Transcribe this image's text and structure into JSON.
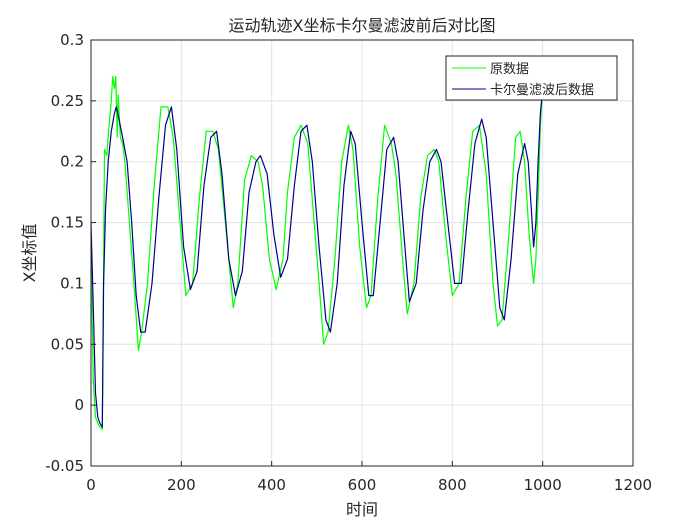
{
  "chart_data": {
    "type": "line",
    "title": "运动轨迹X坐标卡尔曼滤波前后对比图",
    "xlabel": "时间",
    "ylabel": "X坐标值",
    "xlim": [
      0,
      1200
    ],
    "ylim": [
      -0.05,
      0.3
    ],
    "xticks": [
      "0",
      "200",
      "400",
      "600",
      "800",
      "1000",
      "1200"
    ],
    "yticks": [
      "-0.05",
      "0",
      "0.05",
      "0.1",
      "0.15",
      "0.2",
      "0.25",
      "0.3"
    ],
    "grid": true,
    "legend_position": "top-right",
    "series": [
      {
        "name": "原数据",
        "color": "#00ff00",
        "x": [
          0,
          5,
          10,
          15,
          20,
          25,
          30,
          35,
          40,
          45,
          48,
          52,
          55,
          58,
          60,
          65,
          70,
          75,
          85,
          95,
          105,
          112,
          125,
          140,
          155,
          170,
          182,
          195,
          210,
          225,
          240,
          255,
          270,
          282,
          300,
          315,
          325,
          340,
          355,
          370,
          380,
          395,
          410,
          425,
          435,
          450,
          465,
          480,
          492,
          505,
          515,
          525,
          540,
          555,
          570,
          580,
          595,
          610,
          620,
          635,
          650,
          665,
          675,
          690,
          700,
          715,
          730,
          745,
          760,
          770,
          785,
          800,
          815,
          830,
          845,
          860,
          875,
          890,
          900,
          910,
          925,
          940,
          950,
          960,
          970,
          980,
          985,
          990,
          995,
          1000,
          1005
        ],
        "values": [
          0.13,
          0.02,
          -0.01,
          -0.015,
          -0.018,
          -0.02,
          0.21,
          0.205,
          0.23,
          0.25,
          0.27,
          0.26,
          0.27,
          0.22,
          0.255,
          0.22,
          0.215,
          0.2,
          0.15,
          0.1,
          0.045,
          0.06,
          0.1,
          0.18,
          0.245,
          0.245,
          0.22,
          0.16,
          0.09,
          0.1,
          0.17,
          0.225,
          0.225,
          0.21,
          0.14,
          0.08,
          0.1,
          0.185,
          0.205,
          0.2,
          0.18,
          0.12,
          0.095,
          0.12,
          0.175,
          0.22,
          0.23,
          0.215,
          0.16,
          0.1,
          0.05,
          0.06,
          0.12,
          0.2,
          0.23,
          0.21,
          0.13,
          0.08,
          0.09,
          0.17,
          0.23,
          0.215,
          0.19,
          0.12,
          0.075,
          0.1,
          0.17,
          0.205,
          0.21,
          0.2,
          0.14,
          0.09,
          0.1,
          0.17,
          0.225,
          0.23,
          0.19,
          0.1,
          0.065,
          0.07,
          0.14,
          0.22,
          0.225,
          0.2,
          0.14,
          0.1,
          0.12,
          0.17,
          0.23,
          0.26,
          0.28
        ]
      },
      {
        "name": "卡尔曼滤波后数据",
        "color": "#00008b",
        "x": [
          0,
          5,
          10,
          15,
          20,
          25,
          28,
          32,
          38,
          45,
          52,
          56,
          62,
          70,
          80,
          90,
          100,
          110,
          120,
          135,
          150,
          165,
          178,
          190,
          205,
          220,
          235,
          250,
          265,
          278,
          290,
          305,
          320,
          335,
          350,
          365,
          375,
          390,
          405,
          420,
          435,
          450,
          465,
          478,
          490,
          505,
          520,
          530,
          545,
          560,
          575,
          585,
          600,
          615,
          625,
          640,
          655,
          670,
          680,
          695,
          705,
          720,
          735,
          750,
          765,
          775,
          790,
          805,
          820,
          835,
          850,
          865,
          875,
          890,
          905,
          915,
          930,
          945,
          960,
          968,
          975,
          980,
          985,
          990,
          995,
          1000,
          1005
        ],
        "values": [
          0.15,
          0.08,
          0.01,
          -0.01,
          -0.015,
          -0.018,
          0.1,
          0.16,
          0.2,
          0.225,
          0.24,
          0.245,
          0.235,
          0.22,
          0.2,
          0.15,
          0.09,
          0.06,
          0.06,
          0.1,
          0.17,
          0.23,
          0.245,
          0.21,
          0.13,
          0.095,
          0.11,
          0.18,
          0.22,
          0.225,
          0.19,
          0.12,
          0.09,
          0.11,
          0.175,
          0.2,
          0.205,
          0.19,
          0.14,
          0.105,
          0.12,
          0.18,
          0.225,
          0.23,
          0.2,
          0.13,
          0.07,
          0.06,
          0.1,
          0.18,
          0.225,
          0.215,
          0.15,
          0.09,
          0.09,
          0.15,
          0.21,
          0.22,
          0.2,
          0.13,
          0.085,
          0.1,
          0.16,
          0.2,
          0.21,
          0.2,
          0.15,
          0.1,
          0.1,
          0.16,
          0.215,
          0.235,
          0.22,
          0.15,
          0.08,
          0.07,
          0.12,
          0.19,
          0.215,
          0.2,
          0.16,
          0.13,
          0.15,
          0.2,
          0.24,
          0.26,
          0.27
        ]
      }
    ]
  }
}
